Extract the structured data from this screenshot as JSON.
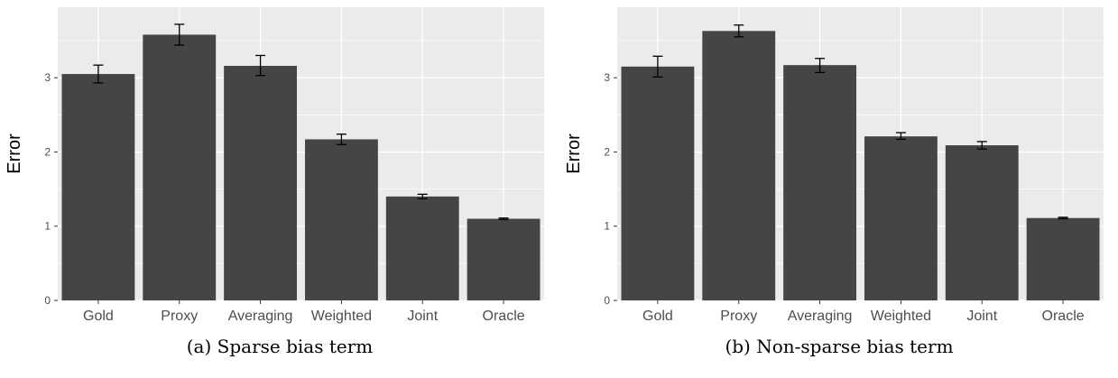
{
  "chart_data": [
    {
      "type": "bar",
      "caption": "(a) Sparse bias term",
      "ylabel": "Error",
      "xlabel": "",
      "categories": [
        "Gold",
        "Proxy",
        "Averaging",
        "Weighted",
        "Joint",
        "Oracle"
      ],
      "values": [
        3.05,
        3.58,
        3.16,
        2.17,
        1.4,
        1.1
      ],
      "error_bars": [
        [
          2.93,
          3.17
        ],
        [
          3.44,
          3.72
        ],
        [
          3.03,
          3.3
        ],
        [
          2.1,
          2.24
        ],
        [
          1.37,
          1.43
        ],
        [
          1.09,
          1.11
        ]
      ],
      "ylim": [
        0,
        3.95
      ],
      "yticks": [
        0,
        1,
        2,
        3
      ],
      "grid": true,
      "legend": "none"
    },
    {
      "type": "bar",
      "caption": "(b) Non-sparse bias term",
      "ylabel": "Error",
      "xlabel": "",
      "categories": [
        "Gold",
        "Proxy",
        "Averaging",
        "Weighted",
        "Joint",
        "Oracle"
      ],
      "values": [
        3.15,
        3.63,
        3.17,
        2.21,
        2.09,
        1.11
      ],
      "error_bars": [
        [
          3.01,
          3.29
        ],
        [
          3.55,
          3.71
        ],
        [
          3.07,
          3.26
        ],
        [
          2.17,
          2.26
        ],
        [
          2.04,
          2.14
        ],
        [
          1.1,
          1.12
        ]
      ],
      "ylim": [
        0,
        3.95
      ],
      "yticks": [
        0,
        1,
        2,
        3
      ],
      "grid": true,
      "legend": "none"
    }
  ],
  "colors": {
    "panel_background": "#ebebeb",
    "grid": "#ffffff",
    "bar": "#454545",
    "error_bar": "#000000"
  }
}
